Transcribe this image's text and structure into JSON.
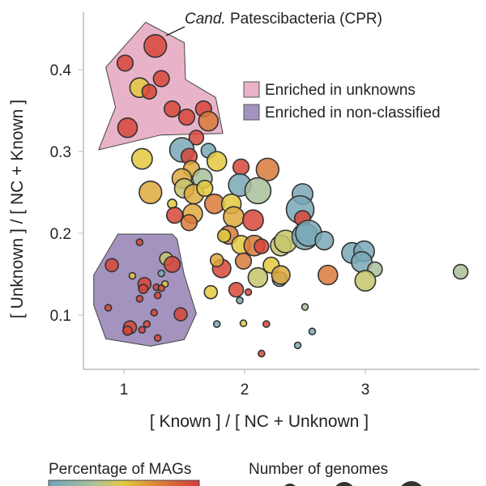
{
  "chart_data": {
    "type": "scatter",
    "xlabel": "[ Known ] / [ NC + Unknown ]",
    "ylabel": "[ Unknown ] / [ NC + Known ]",
    "xlim": [
      0.67,
      3.95
    ],
    "ylim": [
      0.035,
      0.47
    ],
    "xticks": [
      "1",
      "2",
      "3"
    ],
    "xtick_values": [
      1,
      2,
      3
    ],
    "yticks": [
      "0.1",
      "0.2",
      "0.3",
      "0.4"
    ],
    "ytick_values": [
      0.1,
      0.2,
      0.3,
      0.4
    ],
    "grid": false,
    "annotation": {
      "italic": "Cand.",
      "text": " Patescibacteria (CPR)",
      "x": 1.26,
      "y": 0.429
    },
    "regions": [
      {
        "name": "Enriched in unknowns",
        "color": "#e8b3c8",
        "polygon": [
          [
            1.18,
            0.458
          ],
          [
            1.5,
            0.433
          ],
          [
            1.51,
            0.388
          ],
          [
            1.76,
            0.366
          ],
          [
            1.82,
            0.322
          ],
          [
            1.3,
            0.32
          ],
          [
            0.79,
            0.302
          ],
          [
            0.93,
            0.354
          ],
          [
            0.85,
            0.403
          ]
        ]
      },
      {
        "name": "Enriched in non-classified",
        "color": "#a493be",
        "polygon": [
          [
            0.95,
            0.199
          ],
          [
            1.4,
            0.199
          ],
          [
            1.44,
            0.193
          ],
          [
            1.5,
            0.149
          ],
          [
            1.6,
            0.102
          ],
          [
            1.5,
            0.07
          ],
          [
            1.22,
            0.062
          ],
          [
            0.85,
            0.071
          ],
          [
            0.75,
            0.112
          ],
          [
            0.75,
            0.149
          ]
        ]
      }
    ],
    "color_legend_title": "Percentage of MAGs",
    "size_legend_title": "Number of genomes",
    "colorscale": [
      "#6fa3bc",
      "#a9c19a",
      "#e3c93f",
      "#d97a3a",
      "#d63a3a"
    ],
    "point_fields": [
      "x",
      "y",
      "percentage_of_MAGs",
      "number_of_genomes"
    ],
    "points": [
      [
        1.26,
        0.429,
        95,
        12
      ],
      [
        1.01,
        0.408,
        95,
        6
      ],
      [
        1.13,
        0.378,
        50,
        9
      ],
      [
        1.31,
        0.389,
        95,
        6
      ],
      [
        1.21,
        0.373,
        95,
        5
      ],
      [
        1.4,
        0.352,
        95,
        6
      ],
      [
        1.52,
        0.342,
        95,
        6
      ],
      [
        1.66,
        0.352,
        95,
        6
      ],
      [
        1.7,
        0.337,
        75,
        9
      ],
      [
        1.03,
        0.329,
        95,
        9
      ],
      [
        1.6,
        0.317,
        95,
        5
      ],
      [
        1.15,
        0.291,
        50,
        10
      ],
      [
        1.22,
        0.25,
        60,
        12
      ],
      [
        1.48,
        0.302,
        5,
        14
      ],
      [
        1.54,
        0.294,
        95,
        6
      ],
      [
        1.7,
        0.301,
        5,
        5
      ],
      [
        1.77,
        0.288,
        50,
        9
      ],
      [
        1.56,
        0.279,
        60,
        6
      ],
      [
        1.65,
        0.267,
        30,
        9
      ],
      [
        1.48,
        0.267,
        60,
        9
      ],
      [
        1.5,
        0.255,
        40,
        9
      ],
      [
        1.58,
        0.248,
        60,
        9
      ],
      [
        1.67,
        0.255,
        50,
        6
      ],
      [
        1.75,
        0.236,
        75,
        9
      ],
      [
        1.4,
        0.236,
        50,
        2
      ],
      [
        1.42,
        0.222,
        95,
        6
      ],
      [
        1.57,
        0.224,
        60,
        9
      ],
      [
        1.54,
        0.213,
        75,
        6
      ],
      [
        1.97,
        0.281,
        95,
        6
      ],
      [
        2.19,
        0.278,
        75,
        12
      ],
      [
        1.96,
        0.259,
        5,
        12
      ],
      [
        2.11,
        0.252,
        30,
        16
      ],
      [
        1.89,
        0.236,
        50,
        9
      ],
      [
        1.91,
        0.22,
        60,
        10
      ],
      [
        2.07,
        0.216,
        95,
        10
      ],
      [
        1.87,
        0.198,
        75,
        8
      ],
      [
        1.97,
        0.186,
        50,
        8
      ],
      [
        2.08,
        0.185,
        75,
        10
      ],
      [
        2.14,
        0.184,
        95,
        5
      ],
      [
        2.3,
        0.185,
        40,
        10
      ],
      [
        2.34,
        0.19,
        40,
        12
      ],
      [
        2.48,
        0.248,
        5,
        10
      ],
      [
        2.46,
        0.229,
        5,
        18
      ],
      [
        2.48,
        0.218,
        95,
        6
      ],
      [
        2.5,
        0.196,
        5,
        16
      ],
      [
        2.53,
        0.2,
        5,
        16
      ],
      [
        2.66,
        0.191,
        5,
        8
      ],
      [
        2.89,
        0.176,
        5,
        10
      ],
      [
        2.99,
        0.178,
        5,
        10
      ],
      [
        2.97,
        0.165,
        5,
        10
      ],
      [
        3.08,
        0.156,
        30,
        5
      ],
      [
        3.0,
        0.142,
        40,
        10
      ],
      [
        2.69,
        0.149,
        75,
        9
      ],
      [
        1.99,
        0.166,
        75,
        6
      ],
      [
        2.11,
        0.146,
        40,
        9
      ],
      [
        2.22,
        0.161,
        50,
        6
      ],
      [
        2.29,
        0.144,
        5,
        5
      ],
      [
        2.3,
        0.149,
        60,
        8
      ],
      [
        1.93,
        0.131,
        95,
        5
      ],
      [
        2.03,
        0.128,
        95,
        1
      ],
      [
        1.96,
        0.118,
        5,
        1
      ],
      [
        3.79,
        0.153,
        30,
        5
      ],
      [
        2.5,
        0.11,
        30,
        1
      ],
      [
        1.77,
        0.089,
        5,
        1
      ],
      [
        1.99,
        0.09,
        50,
        1
      ],
      [
        2.18,
        0.089,
        95,
        1
      ],
      [
        2.56,
        0.08,
        5,
        1
      ],
      [
        2.44,
        0.063,
        5,
        1
      ],
      [
        2.14,
        0.053,
        95,
        1
      ],
      [
        1.72,
        0.128,
        50,
        4
      ],
      [
        1.81,
        0.157,
        95,
        8
      ],
      [
        1.77,
        0.167,
        60,
        4
      ],
      [
        1.83,
        0.197,
        50,
        4
      ],
      [
        1.13,
        0.189,
        95,
        1
      ],
      [
        0.9,
        0.161,
        95,
        4
      ],
      [
        1.35,
        0.169,
        40,
        4
      ],
      [
        1.4,
        0.162,
        95,
        6
      ],
      [
        1.07,
        0.148,
        50,
        1
      ],
      [
        1.31,
        0.151,
        5,
        1
      ],
      [
        1.17,
        0.138,
        95,
        4
      ],
      [
        1.16,
        0.132,
        95,
        2
      ],
      [
        1.27,
        0.134,
        95,
        1
      ],
      [
        1.34,
        0.138,
        50,
        1
      ],
      [
        1.31,
        0.133,
        95,
        1
      ],
      [
        1.28,
        0.124,
        95,
        1
      ],
      [
        1.13,
        0.12,
        95,
        1
      ],
      [
        0.87,
        0.109,
        95,
        1
      ],
      [
        1.25,
        0.103,
        95,
        1
      ],
      [
        1.47,
        0.101,
        95,
        4
      ],
      [
        1.05,
        0.085,
        95,
        4
      ],
      [
        1.03,
        0.081,
        95,
        2
      ],
      [
        1.19,
        0.089,
        95,
        1
      ],
      [
        1.15,
        0.082,
        95,
        1
      ],
      [
        1.28,
        0.072,
        95,
        1
      ]
    ]
  }
}
